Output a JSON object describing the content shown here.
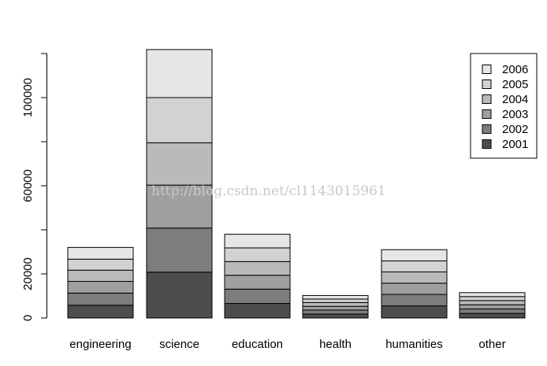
{
  "chart_data": {
    "type": "bar",
    "stacked": true,
    "categories": [
      "engineering",
      "science",
      "education",
      "health",
      "humanities",
      "other"
    ],
    "series": [
      {
        "name": "2001",
        "color": "#4d4d4d",
        "values": [
          5800,
          20800,
          6600,
          1800,
          5500,
          2100
        ]
      },
      {
        "name": "2002",
        "color": "#7d7d7d",
        "values": [
          5500,
          20000,
          6500,
          1800,
          5200,
          2000
        ]
      },
      {
        "name": "2003",
        "color": "#9f9f9f",
        "values": [
          5300,
          19500,
          6300,
          1700,
          5100,
          1900
        ]
      },
      {
        "name": "2004",
        "color": "#bababa",
        "values": [
          5100,
          19200,
          6200,
          1700,
          5100,
          1900
        ]
      },
      {
        "name": "2005",
        "color": "#d2d2d2",
        "values": [
          5000,
          20500,
          6200,
          1600,
          5000,
          1800
        ]
      },
      {
        "name": "2006",
        "color": "#e6e6e6",
        "values": [
          5300,
          21800,
          6200,
          1600,
          5100,
          1800
        ]
      }
    ],
    "ylim": [
      0,
      120000
    ],
    "yticks": [
      0,
      20000,
      60000,
      100000
    ],
    "xlabel": "",
    "ylabel": "",
    "title": "",
    "legend_position": "top-right"
  },
  "watermark": "http://blog.csdn.net/cl1143015961"
}
